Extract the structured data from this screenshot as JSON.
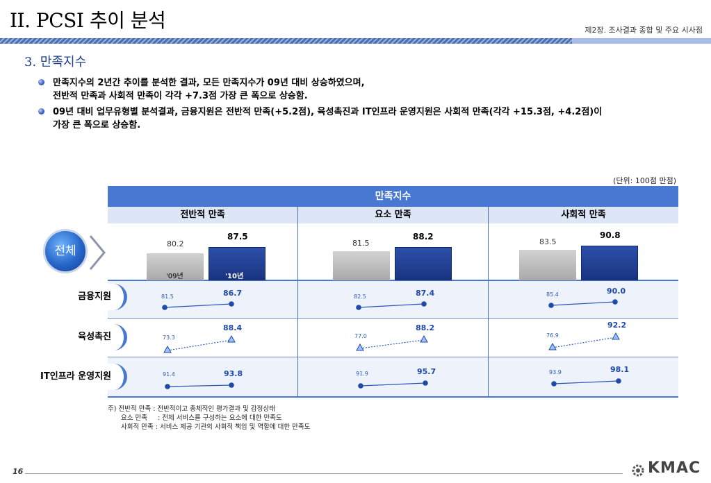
{
  "header": {
    "title": "II. PCSI 추이 분석",
    "chapter": "제2장. 조사결과 종합 및 주요 시사점"
  },
  "section": {
    "title": "3. 만족지수"
  },
  "bullets": [
    {
      "line1": "만족지수의 2년간 추이를 분석한 결과, 모든 만족지수가 09년 대비 상승하였으며,",
      "line2": "전반적 만족과 사회적 만족이 각각 +7.3점 가장 큰 폭으로 상승함."
    },
    {
      "line1": "09년 대비 업무유형별 분석결과, 금융지원은 전반적 만족(+5.2점), 육성촉진과 IT인프라 운영지원은 사회적 만족(각각 +15.3점, +4.2점)이",
      "line2": "가장 큰 폭으로 상승함."
    }
  ],
  "table": {
    "unit": "(단위: 100점 만점)",
    "header": "만족지수",
    "columns": [
      "전반적 만족",
      "요소 만족",
      "사회적 만족"
    ],
    "overall_label": "전체",
    "year_labels": [
      "'09년",
      "'10년"
    ],
    "overall": [
      {
        "v09": "80.2",
        "v10": "87.5"
      },
      {
        "v09": "81.5",
        "v10": "88.2"
      },
      {
        "v09": "83.5",
        "v10": "90.8"
      }
    ],
    "rows": [
      {
        "label": "금융지원",
        "marker": "circle",
        "line": "solid",
        "values": [
          {
            "v09": "81.5",
            "v10": "86.7"
          },
          {
            "v09": "82.5",
            "v10": "87.4"
          },
          {
            "v09": "85.4",
            "v10": "90.0"
          }
        ]
      },
      {
        "label": "육성촉진",
        "marker": "triangle",
        "line": "dotted",
        "values": [
          {
            "v09": "73.3",
            "v10": "88.4"
          },
          {
            "v09": "77.0",
            "v10": "88.2"
          },
          {
            "v09": "76.9",
            "v10": "92.2"
          }
        ]
      },
      {
        "label": "IT인프라 운영지원",
        "marker": "circle",
        "line": "solid",
        "values": [
          {
            "v09": "91.4",
            "v10": "93.8"
          },
          {
            "v09": "91.9",
            "v10": "95.7"
          },
          {
            "v09": "93.9",
            "v10": "98.1"
          }
        ]
      }
    ]
  },
  "notes": {
    "line1": "주) 전반적 만족  : 전반적이고 총체적인 평가결과 및 감정상태",
    "line2": "요소 만족     : 전체 서비스를 구성하는 요소에 대한 만족도",
    "line3": "사회적 만족 : 서비스 제공 기관의 사회적 책임 및 역할에 대한 만족도"
  },
  "footer": {
    "page": "16",
    "logo": "KMAC"
  },
  "colors": {
    "accent": "#4878d2",
    "dark_blue": "#1a3480",
    "grey_bar": "#b5b5b5"
  }
}
